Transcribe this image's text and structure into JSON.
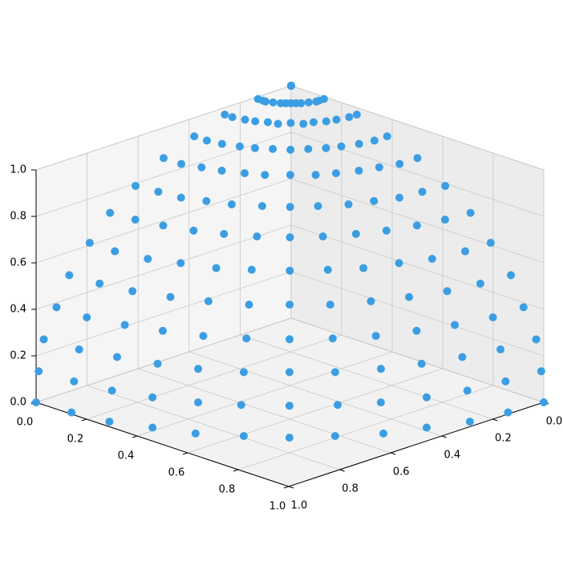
{
  "chart_data": {
    "type": "scatter3d",
    "color": "#3b9ee3",
    "x": [
      0,
      0,
      0,
      0,
      0,
      0,
      0,
      0,
      0,
      0,
      0,
      0,
      0,
      0.13,
      0.13,
      0.13,
      0.12,
      0.11,
      0.1,
      0.09,
      0.08,
      0.07,
      0.05,
      0.03,
      0.02,
      0,
      0.26,
      0.26,
      0.25,
      0.24,
      0.22,
      0.21,
      0.18,
      0.16,
      0.13,
      0.1,
      0.07,
      0.03,
      0,
      0.38,
      0.38,
      0.37,
      0.35,
      0.33,
      0.3,
      0.27,
      0.23,
      0.19,
      0.15,
      0.1,
      0.05,
      0,
      0.5,
      0.5,
      0.48,
      0.46,
      0.43,
      0.4,
      0.35,
      0.3,
      0.25,
      0.19,
      0.13,
      0.07,
      0,
      0.61,
      0.6,
      0.59,
      0.56,
      0.53,
      0.48,
      0.43,
      0.37,
      0.3,
      0.23,
      0.16,
      0.08,
      0,
      0.71,
      0.7,
      0.68,
      0.65,
      0.61,
      0.56,
      0.5,
      0.43,
      0.35,
      0.27,
      0.18,
      0.09,
      0,
      0.79,
      0.79,
      0.77,
      0.73,
      0.69,
      0.63,
      0.56,
      0.48,
      0.4,
      0.3,
      0.21,
      0.1,
      0,
      0.87,
      0.86,
      0.84,
      0.8,
      0.75,
      0.69,
      0.61,
      0.53,
      0.43,
      0.33,
      0.22,
      0.11,
      0,
      0.92,
      0.92,
      0.89,
      0.85,
      0.8,
      0.73,
      0.65,
      0.56,
      0.46,
      0.35,
      0.24,
      0.12,
      0,
      0.97,
      0.96,
      0.93,
      0.89,
      0.84,
      0.77,
      0.68,
      0.59,
      0.48,
      0.37,
      0.25,
      0.13,
      0,
      0.99,
      0.98,
      0.96,
      0.92,
      0.86,
      0.79,
      0.7,
      0.6,
      0.5,
      0.38,
      0.26,
      0.13,
      0,
      1,
      0.99,
      0.97,
      0.92,
      0.87,
      0.79,
      0.71,
      0.61,
      0.5,
      0.38,
      0.26,
      0.13,
      0
    ],
    "y": [
      0,
      0,
      0,
      0,
      0,
      0,
      0,
      0,
      0,
      0,
      0,
      0,
      0,
      0,
      0.02,
      0.03,
      0.05,
      0.07,
      0.08,
      0.09,
      0.1,
      0.11,
      0.12,
      0.13,
      0.13,
      0.13,
      0,
      0.03,
      0.07,
      0.1,
      0.13,
      0.16,
      0.18,
      0.21,
      0.22,
      0.24,
      0.25,
      0.26,
      0.26,
      0,
      0.05,
      0.1,
      0.15,
      0.19,
      0.23,
      0.27,
      0.3,
      0.33,
      0.35,
      0.37,
      0.38,
      0.38,
      0,
      0.07,
      0.13,
      0.19,
      0.25,
      0.3,
      0.35,
      0.4,
      0.43,
      0.46,
      0.48,
      0.5,
      0.5,
      0,
      0.08,
      0.16,
      0.23,
      0.3,
      0.37,
      0.43,
      0.48,
      0.53,
      0.56,
      0.59,
      0.6,
      0.61,
      0,
      0.09,
      0.18,
      0.27,
      0.35,
      0.43,
      0.5,
      0.56,
      0.61,
      0.65,
      0.68,
      0.7,
      0.71,
      0,
      0.1,
      0.21,
      0.3,
      0.4,
      0.48,
      0.56,
      0.63,
      0.69,
      0.73,
      0.77,
      0.79,
      0.79,
      0,
      0.11,
      0.22,
      0.33,
      0.43,
      0.53,
      0.61,
      0.69,
      0.75,
      0.8,
      0.84,
      0.86,
      0.87,
      0,
      0.12,
      0.24,
      0.35,
      0.46,
      0.56,
      0.65,
      0.73,
      0.8,
      0.85,
      0.89,
      0.92,
      0.92,
      0,
      0.13,
      0.25,
      0.37,
      0.48,
      0.59,
      0.68,
      0.77,
      0.84,
      0.89,
      0.93,
      0.96,
      0.97,
      0,
      0.13,
      0.26,
      0.38,
      0.5,
      0.6,
      0.7,
      0.79,
      0.86,
      0.92,
      0.96,
      0.98,
      0.99,
      0,
      0.13,
      0.26,
      0.38,
      0.5,
      0.61,
      0.71,
      0.79,
      0.87,
      0.92,
      0.97,
      0.99,
      1
    ],
    "z": [
      1,
      1,
      1,
      1,
      1,
      1,
      1,
      1,
      1,
      1,
      1,
      1,
      1,
      0.99,
      0.99,
      0.99,
      0.99,
      0.99,
      0.99,
      0.99,
      0.99,
      0.99,
      0.99,
      0.99,
      0.99,
      0.99,
      0.97,
      0.97,
      0.97,
      0.97,
      0.97,
      0.97,
      0.97,
      0.97,
      0.97,
      0.97,
      0.97,
      0.97,
      0.97,
      0.92,
      0.92,
      0.92,
      0.92,
      0.92,
      0.92,
      0.92,
      0.92,
      0.92,
      0.92,
      0.92,
      0.92,
      0.92,
      0.87,
      0.87,
      0.87,
      0.87,
      0.87,
      0.87,
      0.87,
      0.87,
      0.87,
      0.87,
      0.87,
      0.87,
      0.87,
      0.79,
      0.79,
      0.79,
      0.79,
      0.79,
      0.79,
      0.79,
      0.79,
      0.79,
      0.79,
      0.79,
      0.79,
      0.79,
      0.71,
      0.71,
      0.71,
      0.71,
      0.71,
      0.71,
      0.71,
      0.71,
      0.71,
      0.71,
      0.71,
      0.71,
      0.71,
      0.61,
      0.61,
      0.61,
      0.61,
      0.61,
      0.61,
      0.61,
      0.61,
      0.61,
      0.61,
      0.61,
      0.61,
      0.61,
      0.5,
      0.5,
      0.5,
      0.5,
      0.5,
      0.5,
      0.5,
      0.5,
      0.5,
      0.5,
      0.5,
      0.5,
      0.5,
      0.38,
      0.38,
      0.38,
      0.38,
      0.38,
      0.38,
      0.38,
      0.38,
      0.38,
      0.38,
      0.38,
      0.38,
      0.38,
      0.26,
      0.26,
      0.26,
      0.26,
      0.26,
      0.26,
      0.26,
      0.26,
      0.26,
      0.26,
      0.26,
      0.26,
      0.26,
      0.13,
      0.13,
      0.13,
      0.13,
      0.13,
      0.13,
      0.13,
      0.13,
      0.13,
      0.13,
      0.13,
      0.13,
      0.13,
      0,
      0,
      0,
      0,
      0,
      0,
      0,
      0,
      0,
      0,
      0,
      0,
      0
    ],
    "xlim": [
      0,
      1
    ],
    "ylim": [
      0,
      1
    ],
    "zlim": [
      0,
      1
    ],
    "xticks": [
      {
        "value": 0,
        "label": "0.0"
      },
      0.2,
      0.4,
      0.6,
      0.8,
      {
        "value": 1,
        "label": "1.0"
      }
    ],
    "yticks": [
      {
        "value": 0,
        "label": "0.0"
      },
      0.2,
      0.4,
      0.6,
      0.8,
      {
        "value": 1,
        "label": "1.0"
      }
    ],
    "zticks": [
      {
        "value": 0,
        "label": "0.0"
      },
      0.2,
      0.4,
      0.6,
      0.8,
      {
        "value": 1,
        "label": "1.0"
      }
    ],
    "grid": true
  }
}
